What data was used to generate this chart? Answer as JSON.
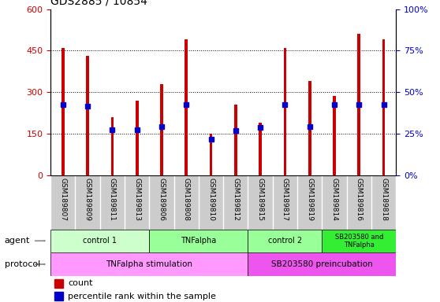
{
  "title": "GDS2885 / 10854",
  "samples": [
    "GSM189807",
    "GSM189809",
    "GSM189811",
    "GSM189813",
    "GSM189806",
    "GSM189808",
    "GSM189810",
    "GSM189812",
    "GSM189815",
    "GSM189817",
    "GSM189819",
    "GSM189814",
    "GSM189816",
    "GSM189818"
  ],
  "counts": [
    460,
    430,
    210,
    270,
    330,
    490,
    150,
    255,
    190,
    460,
    340,
    285,
    510,
    490
  ],
  "percentile_heights": [
    255,
    248,
    163,
    165,
    175,
    255,
    130,
    160,
    173,
    255,
    175,
    255,
    255,
    255
  ],
  "ylim_left": [
    0,
    600
  ],
  "ylim_right": [
    0,
    100
  ],
  "yticks_left": [
    0,
    150,
    300,
    450,
    600
  ],
  "yticks_right": [
    0,
    25,
    50,
    75,
    100
  ],
  "bar_color": "#cc0000",
  "percentile_color": "#0000cc",
  "bar_width": 0.12,
  "agent_groups": [
    {
      "label": "control 1",
      "start": 0,
      "end": 4,
      "color": "#ccffcc"
    },
    {
      "label": "TNFalpha",
      "start": 4,
      "end": 8,
      "color": "#99ff99"
    },
    {
      "label": "control 2",
      "start": 8,
      "end": 11,
      "color": "#99ff99"
    },
    {
      "label": "SB203580 and\nTNFalpha",
      "start": 11,
      "end": 14,
      "color": "#33ee33"
    }
  ],
  "protocol_colors": [
    "#ff99ff",
    "#ee55ee"
  ],
  "protocol_groups": [
    {
      "label": "TNFalpha stimulation",
      "start": 0,
      "end": 8
    },
    {
      "label": "SB203580 preincubation",
      "start": 8,
      "end": 14
    }
  ],
  "tick_color_left": "#cc0000",
  "tick_color_right": "#0000cc",
  "dotted_lines": [
    150,
    300,
    450
  ],
  "xtick_bg": "#cccccc"
}
